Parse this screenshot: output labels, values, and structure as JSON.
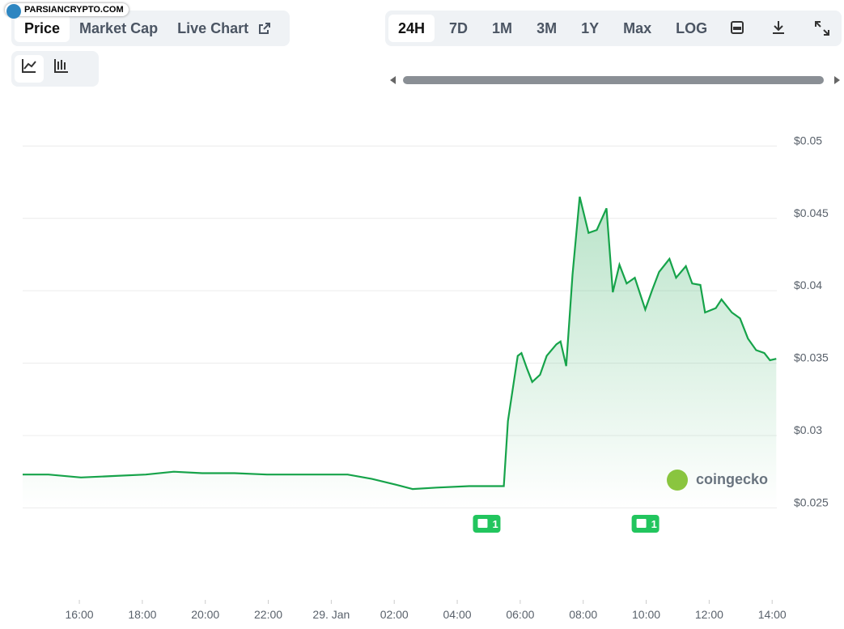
{
  "ui": {
    "watermark": "PARSIANCRYPTO.COM",
    "tabs": [
      "Price",
      "Market Cap",
      "Live Chart"
    ],
    "ranges": [
      "24H",
      "7D",
      "1M",
      "3M",
      "1Y",
      "Max",
      "LOG"
    ],
    "brand": "coingecko"
  },
  "chart_data": {
    "type": "line",
    "color": "#16a34a",
    "grid": true,
    "x": [
      14.2,
      15.02,
      16.05,
      17.08,
      18.11,
      19.0,
      19.9,
      20.93,
      21.96,
      23.24,
      24.52,
      25.29,
      26.06,
      26.58,
      27.35,
      28.38,
      29.48,
      29.61,
      29.92,
      30.04,
      30.22,
      30.38,
      30.63,
      30.84,
      31.15,
      31.28,
      31.46,
      31.66,
      31.89,
      32.17,
      32.43,
      32.74,
      32.94,
      33.15,
      33.38,
      33.64,
      33.97,
      34.18,
      34.41,
      34.74,
      34.95,
      35.26,
      35.46,
      35.72,
      35.87,
      36.21,
      36.39,
      36.72,
      36.98,
      37.23,
      37.49,
      37.75,
      37.93,
      38.13
    ],
    "values": [
      0.0273,
      0.0273,
      0.0271,
      0.0272,
      0.0273,
      0.0275,
      0.0274,
      0.0274,
      0.0273,
      0.0273,
      0.0273,
      0.027,
      0.0266,
      0.0263,
      0.0264,
      0.0265,
      0.0265,
      0.031,
      0.0355,
      0.0357,
      0.0346,
      0.0337,
      0.0342,
      0.0355,
      0.0363,
      0.0365,
      0.0348,
      0.0411,
      0.0465,
      0.044,
      0.0442,
      0.0457,
      0.0399,
      0.0418,
      0.0405,
      0.0409,
      0.0387,
      0.04,
      0.0413,
      0.0422,
      0.0409,
      0.0417,
      0.0405,
      0.0404,
      0.0385,
      0.0388,
      0.0394,
      0.0385,
      0.0381,
      0.0367,
      0.0359,
      0.0357,
      0.0352,
      0.0353
    ],
    "xlim": [
      14.2,
      38.2
    ],
    "xticks": [
      {
        "value": 16,
        "label": "16:00"
      },
      {
        "value": 18,
        "label": "18:00"
      },
      {
        "value": 20,
        "label": "20:00"
      },
      {
        "value": 22,
        "label": "22:00"
      },
      {
        "value": 24,
        "label": "29. Jan"
      },
      {
        "value": 26,
        "label": "02:00"
      },
      {
        "value": 28,
        "label": "04:00"
      },
      {
        "value": 30,
        "label": "06:00"
      },
      {
        "value": 32,
        "label": "08:00"
      },
      {
        "value": 34,
        "label": "10:00"
      },
      {
        "value": 36,
        "label": "12:00"
      },
      {
        "value": 38,
        "label": "14:00"
      }
    ],
    "ylim": [
      0.0187,
      0.0517
    ],
    "yticks": [
      {
        "value": 0.025,
        "label": "$0.025"
      },
      {
        "value": 0.03,
        "label": "$0.03"
      },
      {
        "value": 0.035,
        "label": "$0.035"
      },
      {
        "value": 0.04,
        "label": "$0.04"
      },
      {
        "value": 0.045,
        "label": "$0.045"
      },
      {
        "value": 0.05,
        "label": "$0.05"
      }
    ],
    "annotations": [
      {
        "x": 28.91,
        "label": "1"
      },
      {
        "x": 33.95,
        "label": "1"
      }
    ]
  }
}
